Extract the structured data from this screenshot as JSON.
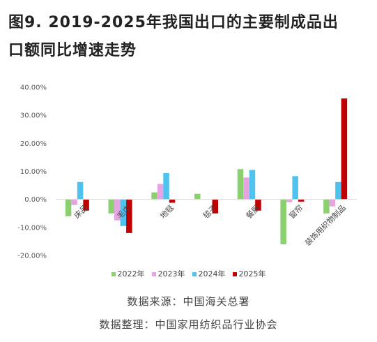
{
  "title_line1": "图9. 2019-2025年我国出口的主要制成品出",
  "title_line2": "口额同比增速走势",
  "source": "数据来源：中国海关总署",
  "compiler": "数据整理：中国家用纺织品行业协会",
  "colors": {
    "2022年": "#8ad070",
    "2023年": "#e7a4e3",
    "2024年": "#4fc3ee",
    "2025年": "#c00000"
  },
  "chart_data": {
    "type": "bar",
    "categories": [
      "床品",
      "毛巾",
      "地毯",
      "毯子",
      "餐厨",
      "窗帘",
      "装饰用织物制品"
    ],
    "series": [
      {
        "name": "2022年",
        "values": [
          -6.0,
          -5.0,
          2.5,
          2.0,
          10.8,
          -16.0,
          -5.0
        ]
      },
      {
        "name": "2023年",
        "values": [
          -2.0,
          -7.5,
          5.5,
          0.0,
          7.8,
          -1.0,
          -2.5
        ]
      },
      {
        "name": "2024年",
        "values": [
          6.2,
          -9.5,
          9.4,
          0.0,
          10.5,
          8.3,
          6.2
        ]
      },
      {
        "name": "2025年",
        "values": [
          -4.0,
          -12.0,
          -1.2,
          -5.0,
          -4.0,
          -0.8,
          36.0
        ]
      }
    ],
    "y_ticks": [
      "40.00%",
      "30.00%",
      "20.00%",
      "10.00%",
      "0.00%",
      "-10.00%",
      "-20.00%"
    ],
    "ylim": [
      -20,
      40
    ],
    "legend_position": "bottom",
    "grid": false
  }
}
